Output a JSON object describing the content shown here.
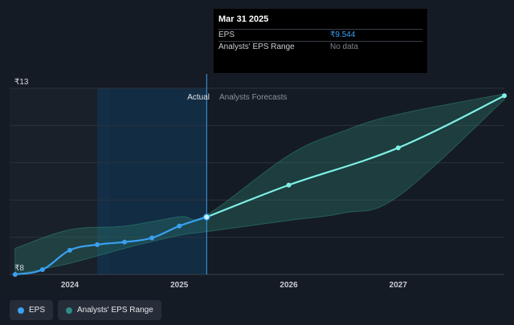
{
  "tooltip": {
    "date": "Mar 31 2025",
    "rows": [
      {
        "label": "EPS",
        "value": "₹9.544"
      },
      {
        "label": "Analysts' EPS Range",
        "value": "No data"
      }
    ]
  },
  "labels": {
    "actual": "Actual",
    "forecasts": "Analysts Forecasts"
  },
  "legend": [
    {
      "label": "EPS"
    },
    {
      "label": "Analysts' EPS Range"
    }
  ],
  "colors": {
    "background": "#151b24",
    "actual_shade": "#0f3a5c",
    "eps_actual": "#3aa0f0",
    "eps_forecast": "#7ff0e6",
    "range_fill": "#2f7f70"
  },
  "chart_data": {
    "type": "line",
    "ylim": [
      8,
      13
    ],
    "xlim": [
      2023.45,
      2027.97
    ],
    "yticks": [
      {
        "value": 13,
        "label": "₹13"
      },
      {
        "value": 8,
        "label": "₹8"
      }
    ],
    "xticks": [
      {
        "value": 2024,
        "label": "2024"
      },
      {
        "value": 2025,
        "label": "2025"
      },
      {
        "value": 2026,
        "label": "2026"
      },
      {
        "value": 2027,
        "label": "2027"
      }
    ],
    "gridlines": [
      13,
      12,
      11,
      10,
      9
    ],
    "actual_start": 2024.25,
    "actual_end": 2025.25,
    "series": [
      {
        "name": "EPS",
        "x": [
          2023.5,
          2023.75,
          2024.0,
          2024.25,
          2024.5,
          2024.75,
          2025.0,
          2025.25
        ],
        "values": [
          8.0,
          8.13,
          8.65,
          8.8,
          8.87,
          8.98,
          9.3,
          9.54
        ]
      },
      {
        "name": "EPS forecast",
        "x": [
          2025.25,
          2026.0,
          2027.0,
          2027.97
        ],
        "values": [
          9.54,
          10.4,
          11.4,
          12.8
        ]
      }
    ],
    "range": {
      "x": [
        2023.5,
        2024.0,
        2024.5,
        2025.0,
        2025.25,
        2026.0,
        2026.5,
        2027.0,
        2027.97
      ],
      "upper": [
        8.7,
        9.2,
        9.3,
        9.55,
        9.6,
        11.2,
        11.85,
        12.3,
        12.85
      ],
      "lower": [
        8.0,
        8.3,
        8.7,
        9.05,
        9.15,
        9.45,
        9.65,
        10.1,
        12.7
      ]
    }
  }
}
